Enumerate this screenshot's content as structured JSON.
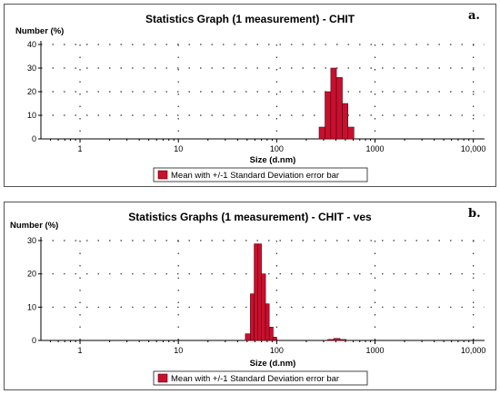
{
  "chart_data": [
    {
      "type": "bar",
      "panel_letter": "a.",
      "title": "Statistics Graph (1 measurement) - CHIT",
      "xlabel": "Size (d.nm)",
      "ylabel": "Number (%)",
      "x_scale": "log",
      "xlim": [
        0.4,
        13000
      ],
      "ylim": [
        0,
        40
      ],
      "x_ticks": [
        1,
        10,
        100,
        1000,
        10000
      ],
      "x_tick_labels": [
        "1",
        "10",
        "100",
        "1000",
        "10,000"
      ],
      "y_ticks": [
        0,
        10,
        20,
        30,
        40
      ],
      "grid": true,
      "bar_color": "#c8102e",
      "bars": [
        {
          "x0": 270,
          "x1": 310,
          "value": 5
        },
        {
          "x0": 310,
          "x1": 355,
          "value": 20
        },
        {
          "x0": 355,
          "x1": 405,
          "value": 30
        },
        {
          "x0": 405,
          "x1": 465,
          "value": 26
        },
        {
          "x0": 465,
          "x1": 530,
          "value": 15
        },
        {
          "x0": 530,
          "x1": 610,
          "value": 5
        }
      ],
      "legend": {
        "label": "Mean with +/-1 Standard Deviation error bar",
        "placement": "bottom-center"
      }
    },
    {
      "type": "bar",
      "panel_letter": "b.",
      "title": "Statistics Graphs (1 measurement) - CHIT - ves",
      "xlabel": "Size (d.nm)",
      "ylabel": "Number (%)",
      "x_scale": "log",
      "xlim": [
        0.4,
        13000
      ],
      "ylim": [
        0,
        30
      ],
      "x_ticks": [
        1,
        10,
        100,
        1000,
        10000
      ],
      "x_tick_labels": [
        "1",
        "10",
        "100",
        "1000",
        "10,000"
      ],
      "y_ticks": [
        0,
        10,
        20,
        30
      ],
      "grid": true,
      "bar_color": "#c8102e",
      "bars": [
        {
          "x0": 48,
          "x1": 54,
          "value": 2
        },
        {
          "x0": 54,
          "x1": 59,
          "value": 14
        },
        {
          "x0": 59,
          "x1": 64,
          "value": 29
        },
        {
          "x0": 64,
          "x1": 70,
          "value": 29
        },
        {
          "x0": 70,
          "x1": 77,
          "value": 20
        },
        {
          "x0": 77,
          "x1": 84,
          "value": 11
        },
        {
          "x0": 84,
          "x1": 92,
          "value": 4
        },
        {
          "x0": 92,
          "x1": 100,
          "value": 1
        },
        {
          "x0": 330,
          "x1": 380,
          "value": 0.3
        },
        {
          "x0": 380,
          "x1": 440,
          "value": 0.6
        },
        {
          "x0": 440,
          "x1": 510,
          "value": 0.3
        }
      ],
      "legend": {
        "label": "Mean with +/-1 Standard Deviation error bar",
        "placement": "bottom-center"
      }
    }
  ]
}
